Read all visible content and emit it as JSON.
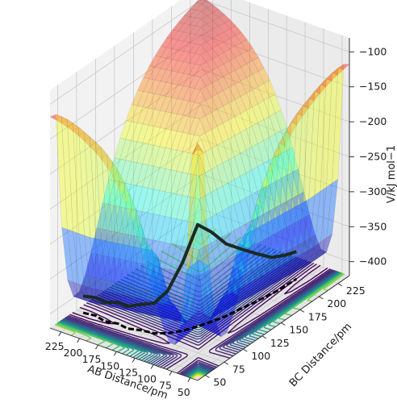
{
  "chart_data": {
    "type": "surface",
    "title": "",
    "x_axis": {
      "label": "AB Distance/pm",
      "ticks": [
        50,
        75,
        100,
        125,
        150,
        175,
        200,
        225
      ],
      "range": [
        40,
        240
      ]
    },
    "y_axis": {
      "label": "BC Distance/pm",
      "ticks": [
        50,
        75,
        100,
        125,
        150,
        175,
        200,
        225
      ],
      "range": [
        40,
        240
      ]
    },
    "z_axis": {
      "label": "V/kJ mol−1",
      "ticks": [
        -100,
        -150,
        -200,
        -250,
        -300,
        -350,
        -400
      ],
      "range": [
        -420,
        -80
      ]
    },
    "potential": {
      "asymptote": -110,
      "well_depth": 290,
      "equilibrium_distance": 74,
      "colormap": "jet",
      "surface_opacity": 0.4
    },
    "contours": {
      "count": 30,
      "colormap": "viridis",
      "projected_on": "floor"
    },
    "trajectory": {
      "color": "#1b2a22",
      "ab": [
        230,
        215,
        200,
        185,
        170,
        155,
        140,
        128,
        118,
        110,
        104,
        98,
        94,
        90,
        86,
        84,
        83
      ],
      "bc": [
        74,
        76,
        73,
        76,
        74,
        78,
        80,
        86,
        96,
        108,
        120,
        134,
        150,
        166,
        182,
        198,
        212
      ]
    },
    "grid": true
  }
}
